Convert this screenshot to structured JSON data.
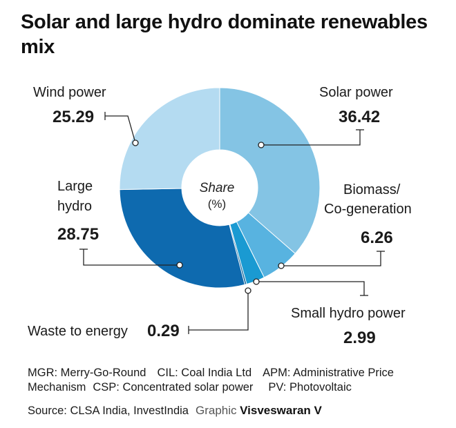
{
  "title": "Solar and large hydro dominate renewables mix",
  "center_label": [
    "Share",
    "(%)"
  ],
  "chart_data": {
    "type": "pie",
    "title": "Solar and large hydro dominate renewables mix",
    "center_label": "Share (%)",
    "slices": [
      {
        "label": "Solar power",
        "value": 36.42,
        "color": "#84c4e4"
      },
      {
        "label": "Biomass/ Co-generation",
        "value": 6.26,
        "color": "#58b3e0"
      },
      {
        "label": "Small hydro power",
        "value": 2.99,
        "color": "#1a9ad2"
      },
      {
        "label": "Waste to energy",
        "value": 0.29,
        "color": "#0b5f96"
      },
      {
        "label": "Large hydro",
        "value": 28.75,
        "color": "#0e6aaf"
      },
      {
        "label": "Wind power",
        "value": 25.29,
        "color": "#b4dbf1"
      }
    ]
  },
  "labels": {
    "solar": {
      "name": "Solar power",
      "value": "36.42"
    },
    "biomass": {
      "name_lines": [
        "Biomass/",
        "Co-generation"
      ],
      "value": "6.26"
    },
    "small_hydro": {
      "name": "Small hydro power",
      "value": "2.99"
    },
    "waste": {
      "name": "Waste to energy",
      "value": "0.29"
    },
    "large_hydro": {
      "name_lines": [
        "Large",
        "hydro"
      ],
      "value": "28.75"
    },
    "wind": {
      "name": "Wind power",
      "value": "25.29"
    }
  },
  "footer": {
    "abbr_1a": "MGR: Merry-Go-Round",
    "abbr_1b": "CIL: Coal India Ltd",
    "abbr_1c": "APM: Administrative Price",
    "abbr_2a": "Mechanism",
    "abbr_2b": "CSP: Concentrated solar power",
    "abbr_2c": "PV: Photovoltaic",
    "source": "Source: CLSA India, InvestIndia",
    "credit_label": "Graphic",
    "credit_name": "Visveswaran V"
  }
}
